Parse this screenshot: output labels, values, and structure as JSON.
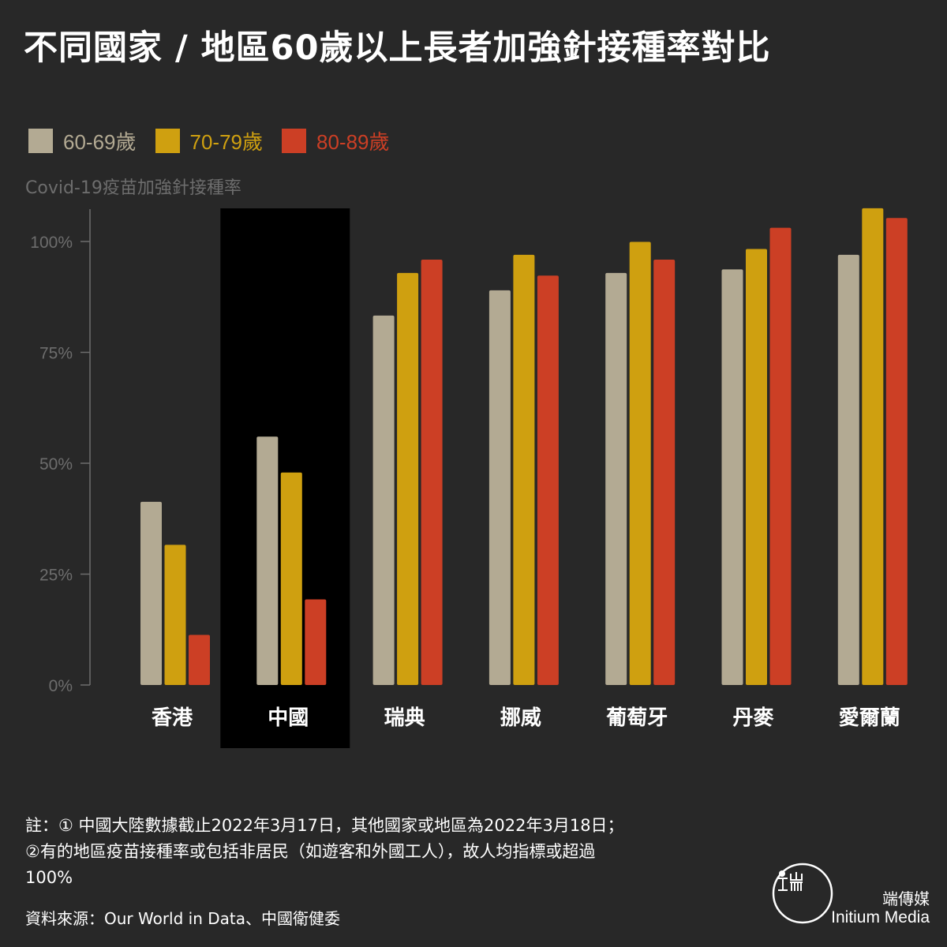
{
  "title": "不同國家 / 地區60歲以上長者加強針接種率對比",
  "y_caption": "Covid-19疫苗加強針接種率",
  "colors": {
    "background": "#282828",
    "series_60_69": "#b3aa93",
    "series_70_79": "#cfa010",
    "series_80_89": "#cc3f25",
    "highlight_band": "#000000",
    "axis": "#6d6d6d"
  },
  "chart_data": {
    "type": "bar",
    "categories": [
      "香港",
      "中國",
      "瑞典",
      "挪威",
      "葡萄牙",
      "丹麥",
      "愛爾蘭"
    ],
    "highlight_category": "中國",
    "series": [
      {
        "name": "60-69歲",
        "values": [
          41.3,
          56.0,
          83.3,
          89.0,
          92.9,
          93.7,
          97.0
        ]
      },
      {
        "name": "70-79歲",
        "values": [
          31.6,
          47.9,
          92.9,
          97.0,
          99.9,
          98.3,
          107.5
        ]
      },
      {
        "name": "80-89歲",
        "values": [
          11.3,
          19.3,
          95.9,
          92.3,
          95.9,
          103.1,
          105.3
        ]
      }
    ],
    "ylim": [
      0,
      110
    ],
    "yticks": [
      0,
      25,
      50,
      75,
      100
    ],
    "ytick_labels": [
      "0%",
      "25%",
      "50%",
      "75%",
      "100%"
    ],
    "ylabel": "Covid-19疫苗加強針接種率",
    "legend_position": "top-left",
    "grid": false
  },
  "footnote": {
    "line1": "註：① 中國大陸數據截止2022年3月17日，其他國家或地區為2022年3月18日；",
    "line2": "②有的地區疫苗接種率或包括非居民（如遊客和外國工人），故人均指標或超過",
    "line3": "100%"
  },
  "source": "資料來源：Our World in Data、中國衛健委",
  "brand": {
    "name_cn": "端傳媒",
    "name_en": "Initium Media",
    "logo_icon": "initium-logo-icon"
  }
}
